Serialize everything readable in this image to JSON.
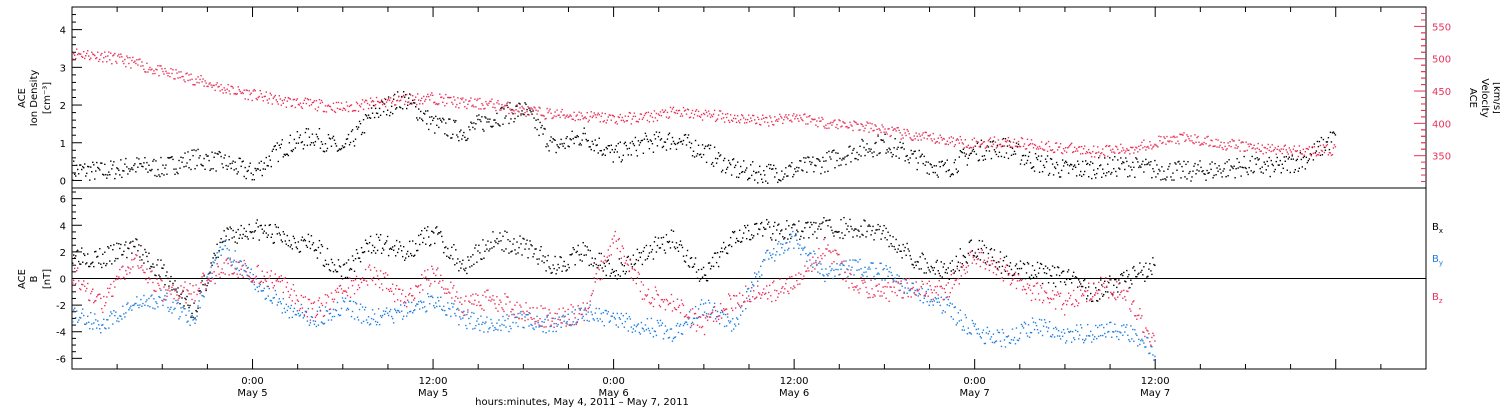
{
  "colors": {
    "axis": "#000000",
    "density": "#000000",
    "velocity": "#e8325a",
    "bx": "#000000",
    "by": "#1f7fe0",
    "bz": "#e8325a"
  },
  "chart_data": [
    {
      "type": "scatter",
      "panel": "top",
      "ylabel_left": [
        "ACE",
        "Ion Density",
        "[cm⁻³]"
      ],
      "ylabel_right": [
        "ACE",
        "Velocity",
        "[km/s]"
      ],
      "ylim_left": [
        -0.2,
        4.6
      ],
      "ylim_right": [
        300,
        580
      ],
      "yticks_left": [
        "0",
        "1",
        "2",
        "3",
        "4"
      ],
      "yticks_right": [
        "350",
        "400",
        "450",
        "500",
        "550"
      ],
      "series": [
        {
          "name": "",
          "axis": "left",
          "color": "#000000",
          "x": [
            0,
            2,
            4,
            6,
            8,
            10,
            12,
            14,
            16,
            18,
            20,
            22,
            24,
            26,
            28,
            30,
            32,
            34,
            36,
            38,
            40,
            42,
            44,
            46,
            48,
            50,
            52,
            54,
            56,
            58,
            60,
            62,
            64,
            66,
            68,
            70,
            72,
            74,
            76,
            78,
            80,
            82,
            84
          ],
          "y": [
            0.3,
            0.25,
            0.4,
            0.35,
            0.6,
            0.5,
            0.2,
            0.9,
            1.2,
            0.8,
            1.8,
            2.2,
            1.5,
            1.3,
            1.7,
            1.9,
            0.9,
            1.2,
            0.7,
            1.0,
            1.1,
            0.8,
            0.3,
            0.2,
            0.3,
            0.5,
            0.8,
            1.0,
            0.6,
            0.3,
            0.8,
            0.9,
            0.5,
            0.3,
            0.35,
            0.4,
            0.3,
            0.25,
            0.3,
            0.4,
            0.35,
            0.6,
            1.2
          ]
        },
        {
          "name": "",
          "axis": "right",
          "color": "#e8325a",
          "x": [
            0,
            2,
            4,
            6,
            8,
            10,
            12,
            14,
            16,
            18,
            20,
            22,
            24,
            26,
            28,
            30,
            32,
            34,
            36,
            38,
            40,
            42,
            44,
            46,
            48,
            50,
            52,
            54,
            56,
            58,
            60,
            62,
            64,
            66,
            68,
            70,
            72,
            74,
            76,
            78,
            80,
            82,
            84
          ],
          "y": [
            510,
            505,
            495,
            480,
            470,
            455,
            445,
            435,
            430,
            425,
            432,
            438,
            440,
            432,
            430,
            420,
            415,
            412,
            408,
            410,
            418,
            414,
            410,
            405,
            412,
            402,
            398,
            390,
            380,
            375,
            370,
            372,
            368,
            362,
            358,
            360,
            372,
            378,
            370,
            365,
            360,
            358,
            360
          ]
        }
      ]
    },
    {
      "type": "scatter",
      "panel": "bottom",
      "ylabel": [
        "ACE",
        "B",
        "[nT]"
      ],
      "ylim": [
        -6.8,
        6.8
      ],
      "yticks": [
        "-6",
        "-4",
        "-2",
        "0",
        "2",
        "4",
        "6"
      ],
      "xlim": [
        0,
        90
      ],
      "xticks": [
        {
          "x": 12,
          "time": "0:00",
          "date": "May 5"
        },
        {
          "x": 24,
          "time": "12:00",
          "date": "May 5"
        },
        {
          "x": 36,
          "time": "0:00",
          "date": "May 6"
        },
        {
          "x": 48,
          "time": "12:00",
          "date": "May 6"
        },
        {
          "x": 60,
          "time": "0:00",
          "date": "May 7"
        },
        {
          "x": 72,
          "time": "12:00",
          "date": "May 7"
        }
      ],
      "xlabel": "hours:minutes, May  4, 2011 – May  7, 2011",
      "series": [
        {
          "name": "B",
          "sub": "x",
          "color": "#000000",
          "x": [
            0,
            2,
            4,
            6,
            8,
            10,
            12,
            14,
            16,
            18,
            20,
            22,
            24,
            26,
            28,
            30,
            32,
            34,
            36,
            38,
            40,
            42,
            44,
            46,
            48,
            50,
            52,
            54,
            56,
            58,
            60,
            62,
            64,
            66,
            68,
            70,
            72
          ],
          "y": [
            2.0,
            1.5,
            2.5,
            0.5,
            -2.5,
            3.0,
            3.8,
            3.2,
            2.5,
            0.5,
            2.8,
            2.0,
            3.5,
            1.0,
            3.0,
            2.5,
            1.0,
            2.0,
            0.5,
            2.0,
            3.0,
            0.0,
            3.5,
            3.8,
            3.6,
            3.9,
            3.8,
            3.5,
            1.5,
            0.5,
            2.5,
            1.0,
            0.5,
            0.0,
            -1.0,
            0.0,
            1.0
          ]
        },
        {
          "name": "B",
          "sub": "y",
          "color": "#1f7fe0",
          "x": [
            0,
            2,
            4,
            6,
            8,
            10,
            12,
            14,
            16,
            18,
            20,
            22,
            24,
            26,
            28,
            30,
            32,
            34,
            36,
            38,
            40,
            42,
            44,
            46,
            48,
            50,
            52,
            54,
            56,
            58,
            60,
            62,
            64,
            66,
            68,
            70,
            72
          ],
          "y": [
            -2.5,
            -3.5,
            -2.0,
            -1.5,
            -3.0,
            2.5,
            0.0,
            -2.0,
            -3.0,
            -2.0,
            -3.0,
            -2.5,
            -1.5,
            -3.0,
            -3.5,
            -3.0,
            -3.5,
            -2.5,
            -3.0,
            -3.5,
            -4.0,
            -2.0,
            -3.5,
            1.5,
            3.0,
            0.5,
            1.0,
            0.5,
            -1.0,
            -2.0,
            -4.0,
            -4.5,
            -3.5,
            -4.2,
            -4.0,
            -3.8,
            -5.5
          ]
        },
        {
          "name": "B",
          "sub": "z",
          "color": "#e8325a",
          "x": [
            0,
            2,
            4,
            6,
            8,
            10,
            12,
            14,
            16,
            18,
            20,
            22,
            24,
            26,
            28,
            30,
            32,
            34,
            36,
            38,
            40,
            42,
            44,
            46,
            48,
            50,
            52,
            54,
            56,
            58,
            60,
            62,
            64,
            66,
            68,
            70,
            72
          ],
          "y": [
            0.5,
            -2.0,
            1.5,
            -1.0,
            -1.0,
            1.0,
            0.5,
            -0.5,
            -2.5,
            -1.0,
            0.5,
            -1.5,
            0.5,
            -2.0,
            -1.5,
            -2.5,
            -3.0,
            -2.5,
            3.0,
            -1.0,
            -2.0,
            -3.5,
            -1.5,
            -1.0,
            -0.5,
            2.5,
            -0.5,
            -1.0,
            -0.5,
            -1.0,
            2.0,
            0.5,
            -1.0,
            -2.0,
            -0.5,
            -1.0,
            -5.0
          ]
        }
      ]
    }
  ]
}
